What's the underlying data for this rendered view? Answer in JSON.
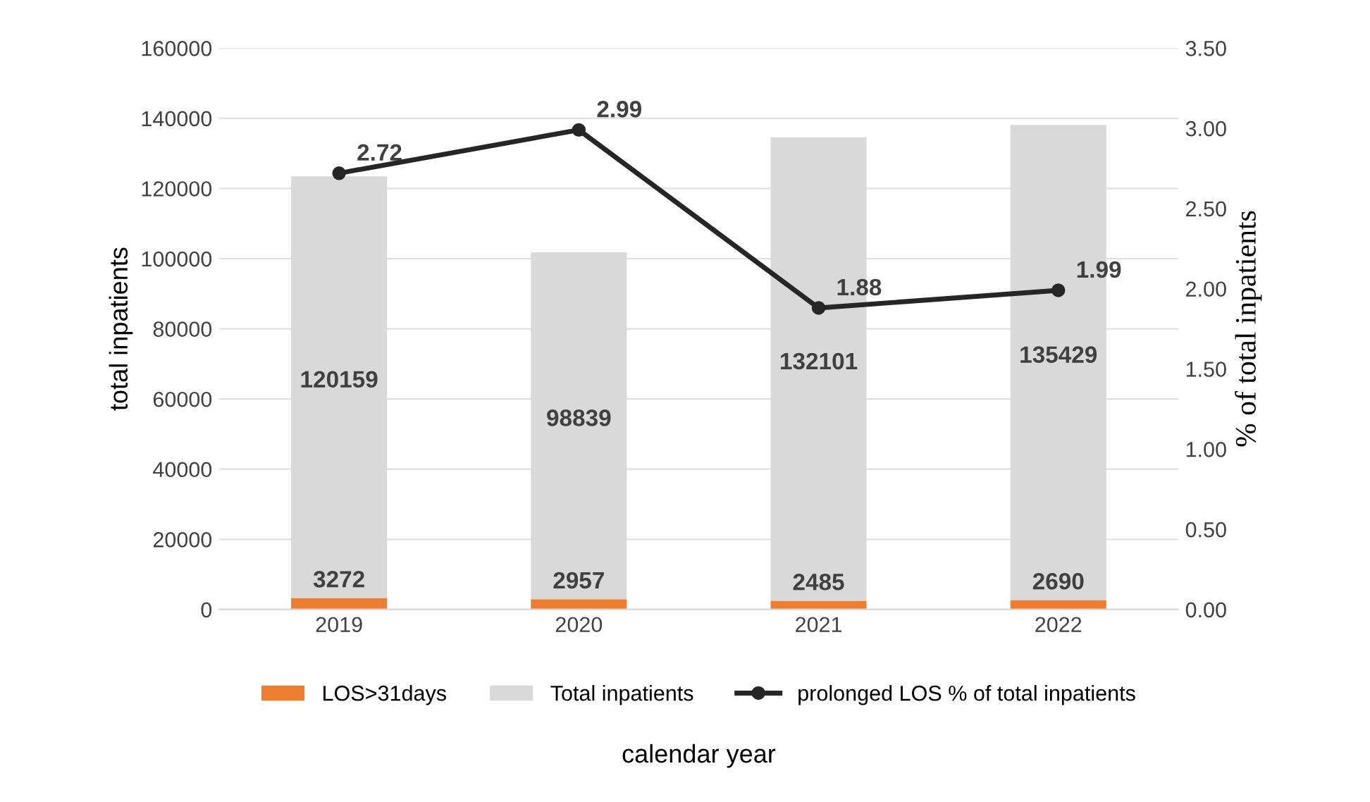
{
  "chart_data": {
    "type": "bar",
    "stacked": true,
    "categories": [
      "2019",
      "2020",
      "2021",
      "2022"
    ],
    "xlabel": "calendar year",
    "ylabel": "total inpatients",
    "y2label": "% of total inpatients",
    "series": [
      {
        "name": "LOS>31days",
        "color": "#ed7d31",
        "values": [
          3272,
          2957,
          2485,
          2690
        ]
      },
      {
        "name": "Total inpatients",
        "color": "#d9d9d9",
        "values": [
          120159,
          98839,
          132101,
          135429
        ]
      },
      {
        "name": "prolonged LOS % of total inpatients",
        "type": "line",
        "axis": "y2",
        "color": "#262626",
        "marker": "circle",
        "values": [
          2.72,
          2.99,
          1.88,
          1.99
        ]
      }
    ],
    "ylim": [
      0,
      160000
    ],
    "yticks": [
      0,
      20000,
      40000,
      60000,
      80000,
      100000,
      120000,
      140000,
      160000
    ],
    "y2lim": [
      0,
      3.5
    ],
    "y2ticks": [
      {
        "value": 0,
        "label": "0.00"
      },
      {
        "value": 0.5,
        "label": "0.50"
      },
      {
        "value": 1,
        "label": "1.00"
      },
      {
        "value": 1.5,
        "label": "1.50"
      },
      {
        "value": 2,
        "label": "2.00"
      },
      {
        "value": 2.5,
        "label": "2.50"
      },
      {
        "value": 3,
        "label": "3.00"
      },
      {
        "value": 3.5,
        "label": "3.50"
      }
    ],
    "grid": "y",
    "legend": "bottom",
    "data_labels": true
  }
}
